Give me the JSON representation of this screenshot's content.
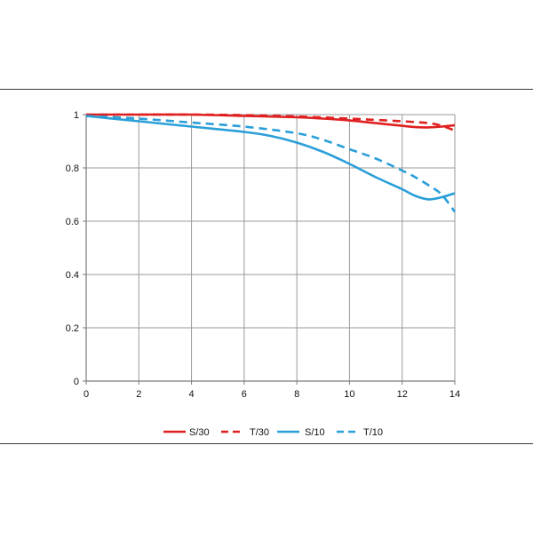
{
  "chart_data": {
    "type": "line",
    "title": "",
    "xlabel": "",
    "ylabel": "",
    "xlim": [
      0,
      14
    ],
    "ylim": [
      0,
      1
    ],
    "x_ticks": [
      0,
      2,
      4,
      6,
      8,
      10,
      12,
      14
    ],
    "x_tick_labels": [
      "0",
      "2",
      "4",
      "6",
      "8",
      "10",
      "12",
      "14"
    ],
    "y_ticks": [
      0,
      0.2,
      0.4,
      0.6,
      0.8,
      1
    ],
    "y_tick_labels": [
      "0",
      "0.2",
      "0.4",
      "0.6",
      "0.8",
      "1"
    ],
    "grid": true,
    "legend_position": "bottom",
    "series": [
      {
        "name": "S/30",
        "color": "#e02020",
        "dash": "solid",
        "x": [
          0,
          2,
          4,
          6,
          8,
          9,
          10,
          11,
          12,
          12.5,
          13,
          13.5,
          14
        ],
        "y": [
          1.0,
          1.0,
          1.0,
          0.995,
          0.99,
          0.985,
          0.978,
          0.968,
          0.958,
          0.953,
          0.952,
          0.955,
          0.96
        ]
      },
      {
        "name": "T/30",
        "color": "#e02020",
        "dash": "dashed",
        "x": [
          0,
          2,
          4,
          6,
          8,
          10,
          11,
          12,
          13,
          13.5,
          14
        ],
        "y": [
          1.0,
          1.0,
          1.0,
          0.998,
          0.993,
          0.985,
          0.98,
          0.975,
          0.968,
          0.958,
          0.94
        ]
      },
      {
        "name": "S/10",
        "color": "#2a9fd8",
        "dash": "solid",
        "x": [
          0,
          2,
          4,
          6,
          7,
          8,
          9,
          10,
          11,
          12,
          12.5,
          13,
          13.5,
          14
        ],
        "y": [
          0.995,
          0.975,
          0.955,
          0.935,
          0.92,
          0.895,
          0.86,
          0.815,
          0.765,
          0.72,
          0.695,
          0.682,
          0.69,
          0.705
        ]
      },
      {
        "name": "T/10",
        "color": "#2a9fd8",
        "dash": "dashed",
        "x": [
          0,
          2,
          4,
          6,
          8,
          9,
          10,
          11,
          12,
          12.5,
          13,
          13.5,
          14
        ],
        "y": [
          0.995,
          0.985,
          0.97,
          0.955,
          0.93,
          0.905,
          0.87,
          0.835,
          0.79,
          0.765,
          0.735,
          0.7,
          0.635
        ]
      }
    ]
  }
}
